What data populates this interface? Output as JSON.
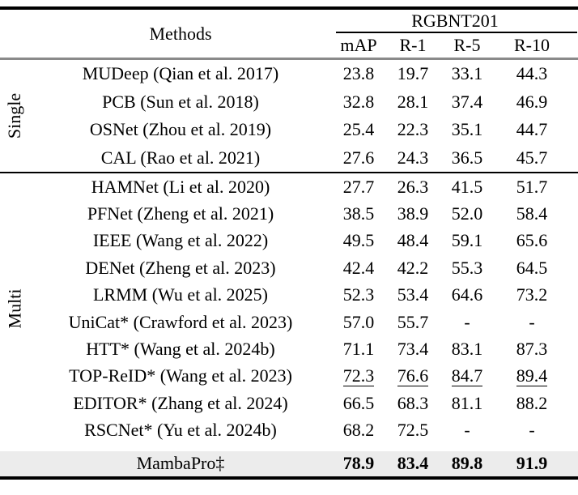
{
  "colors": {
    "rule_black": "#000000",
    "rule_gray": "#8a8a8a",
    "highlight_row_bg": "#ececec",
    "text": "#000000"
  },
  "header": {
    "methods_label": "Methods",
    "dataset_label": "RGBNT201",
    "metrics": [
      "mAP",
      "R-1",
      "R-5",
      "R-10"
    ]
  },
  "groups": [
    {
      "label": "Single",
      "rows": [
        {
          "method": "MUDeep (Qian et al. 2017)",
          "values": [
            "23.8",
            "19.7",
            "33.1",
            "44.3"
          ]
        },
        {
          "method": "PCB (Sun et al. 2018)",
          "values": [
            "32.8",
            "28.1",
            "37.4",
            "46.9"
          ]
        },
        {
          "method": "OSNet (Zhou et al. 2019)",
          "values": [
            "25.4",
            "22.3",
            "35.1",
            "44.7"
          ]
        },
        {
          "method": "CAL (Rao et al. 2021)",
          "values": [
            "27.6",
            "24.3",
            "36.5",
            "45.7"
          ]
        }
      ]
    },
    {
      "label": "Multi",
      "rows": [
        {
          "method": "HAMNet (Li et al. 2020)",
          "values": [
            "27.7",
            "26.3",
            "41.5",
            "51.7"
          ]
        },
        {
          "method": "PFNet (Zheng et al. 2021)",
          "values": [
            "38.5",
            "38.9",
            "52.0",
            "58.4"
          ]
        },
        {
          "method": "IEEE (Wang et al. 2022)",
          "values": [
            "49.5",
            "48.4",
            "59.1",
            "65.6"
          ]
        },
        {
          "method": "DENet (Zheng et al. 2023)",
          "values": [
            "42.4",
            "42.2",
            "55.3",
            "64.5"
          ]
        },
        {
          "method": "LRMM (Wu et al. 2025)",
          "values": [
            "52.3",
            "53.4",
            "64.6",
            "73.2"
          ]
        },
        {
          "method": "UniCat* (Crawford et al. 2023)",
          "values": [
            "57.0",
            "55.7",
            "-",
            "-"
          ]
        },
        {
          "method": "HTT* (Wang et al. 2024b)",
          "values": [
            "71.1",
            "73.4",
            "83.1",
            "87.3"
          ]
        },
        {
          "method": "TOP-ReID* (Wang et al. 2023)",
          "values": [
            "72.3",
            "76.6",
            "84.7",
            "89.4"
          ],
          "underline": true
        },
        {
          "method": "EDITOR* (Zhang et al. 2024)",
          "values": [
            "66.5",
            "68.3",
            "81.1",
            "88.2"
          ]
        },
        {
          "method": "RSCNet* (Yu et al. 2024b)",
          "values": [
            "68.2",
            "72.5",
            "-",
            "-"
          ]
        }
      ]
    }
  ],
  "final_row": {
    "method": "MambaPro‡",
    "values": [
      "78.9",
      "83.4",
      "89.8",
      "91.9"
    ],
    "bold": true
  }
}
